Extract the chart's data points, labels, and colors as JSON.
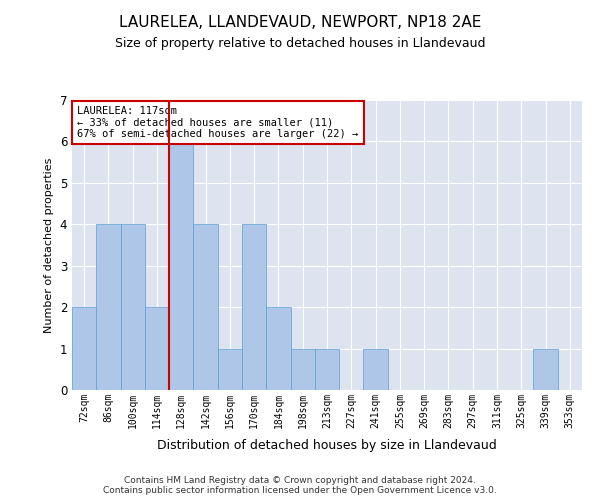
{
  "title": "LAURELEA, LLANDEVAUD, NEWPORT, NP18 2AE",
  "subtitle": "Size of property relative to detached houses in Llandevaud",
  "xlabel": "Distribution of detached houses by size in Llandevaud",
  "ylabel": "Number of detached properties",
  "categories": [
    "72sqm",
    "86sqm",
    "100sqm",
    "114sqm",
    "128sqm",
    "142sqm",
    "156sqm",
    "170sqm",
    "184sqm",
    "198sqm",
    "213sqm",
    "227sqm",
    "241sqm",
    "255sqm",
    "269sqm",
    "283sqm",
    "297sqm",
    "311sqm",
    "325sqm",
    "339sqm",
    "353sqm"
  ],
  "values": [
    2,
    4,
    4,
    2,
    6,
    4,
    1,
    4,
    2,
    1,
    1,
    0,
    1,
    0,
    0,
    0,
    0,
    0,
    0,
    1,
    0
  ],
  "bar_color": "#aec6e8",
  "bar_edge_color": "#5a9fd4",
  "reference_line_x": 3.5,
  "reference_line_color": "#cc0000",
  "annotation_text": "LAURELEA: 117sqm\n← 33% of detached houses are smaller (11)\n67% of semi-detached houses are larger (22) →",
  "annotation_box_color": "#ffffff",
  "annotation_box_edge_color": "#cc0000",
  "ylim": [
    0,
    7
  ],
  "yticks": [
    0,
    1,
    2,
    3,
    4,
    5,
    6,
    7
  ],
  "background_color": "#dde4f0",
  "footer_line1": "Contains HM Land Registry data © Crown copyright and database right 2024.",
  "footer_line2": "Contains public sector information licensed under the Open Government Licence v3.0."
}
